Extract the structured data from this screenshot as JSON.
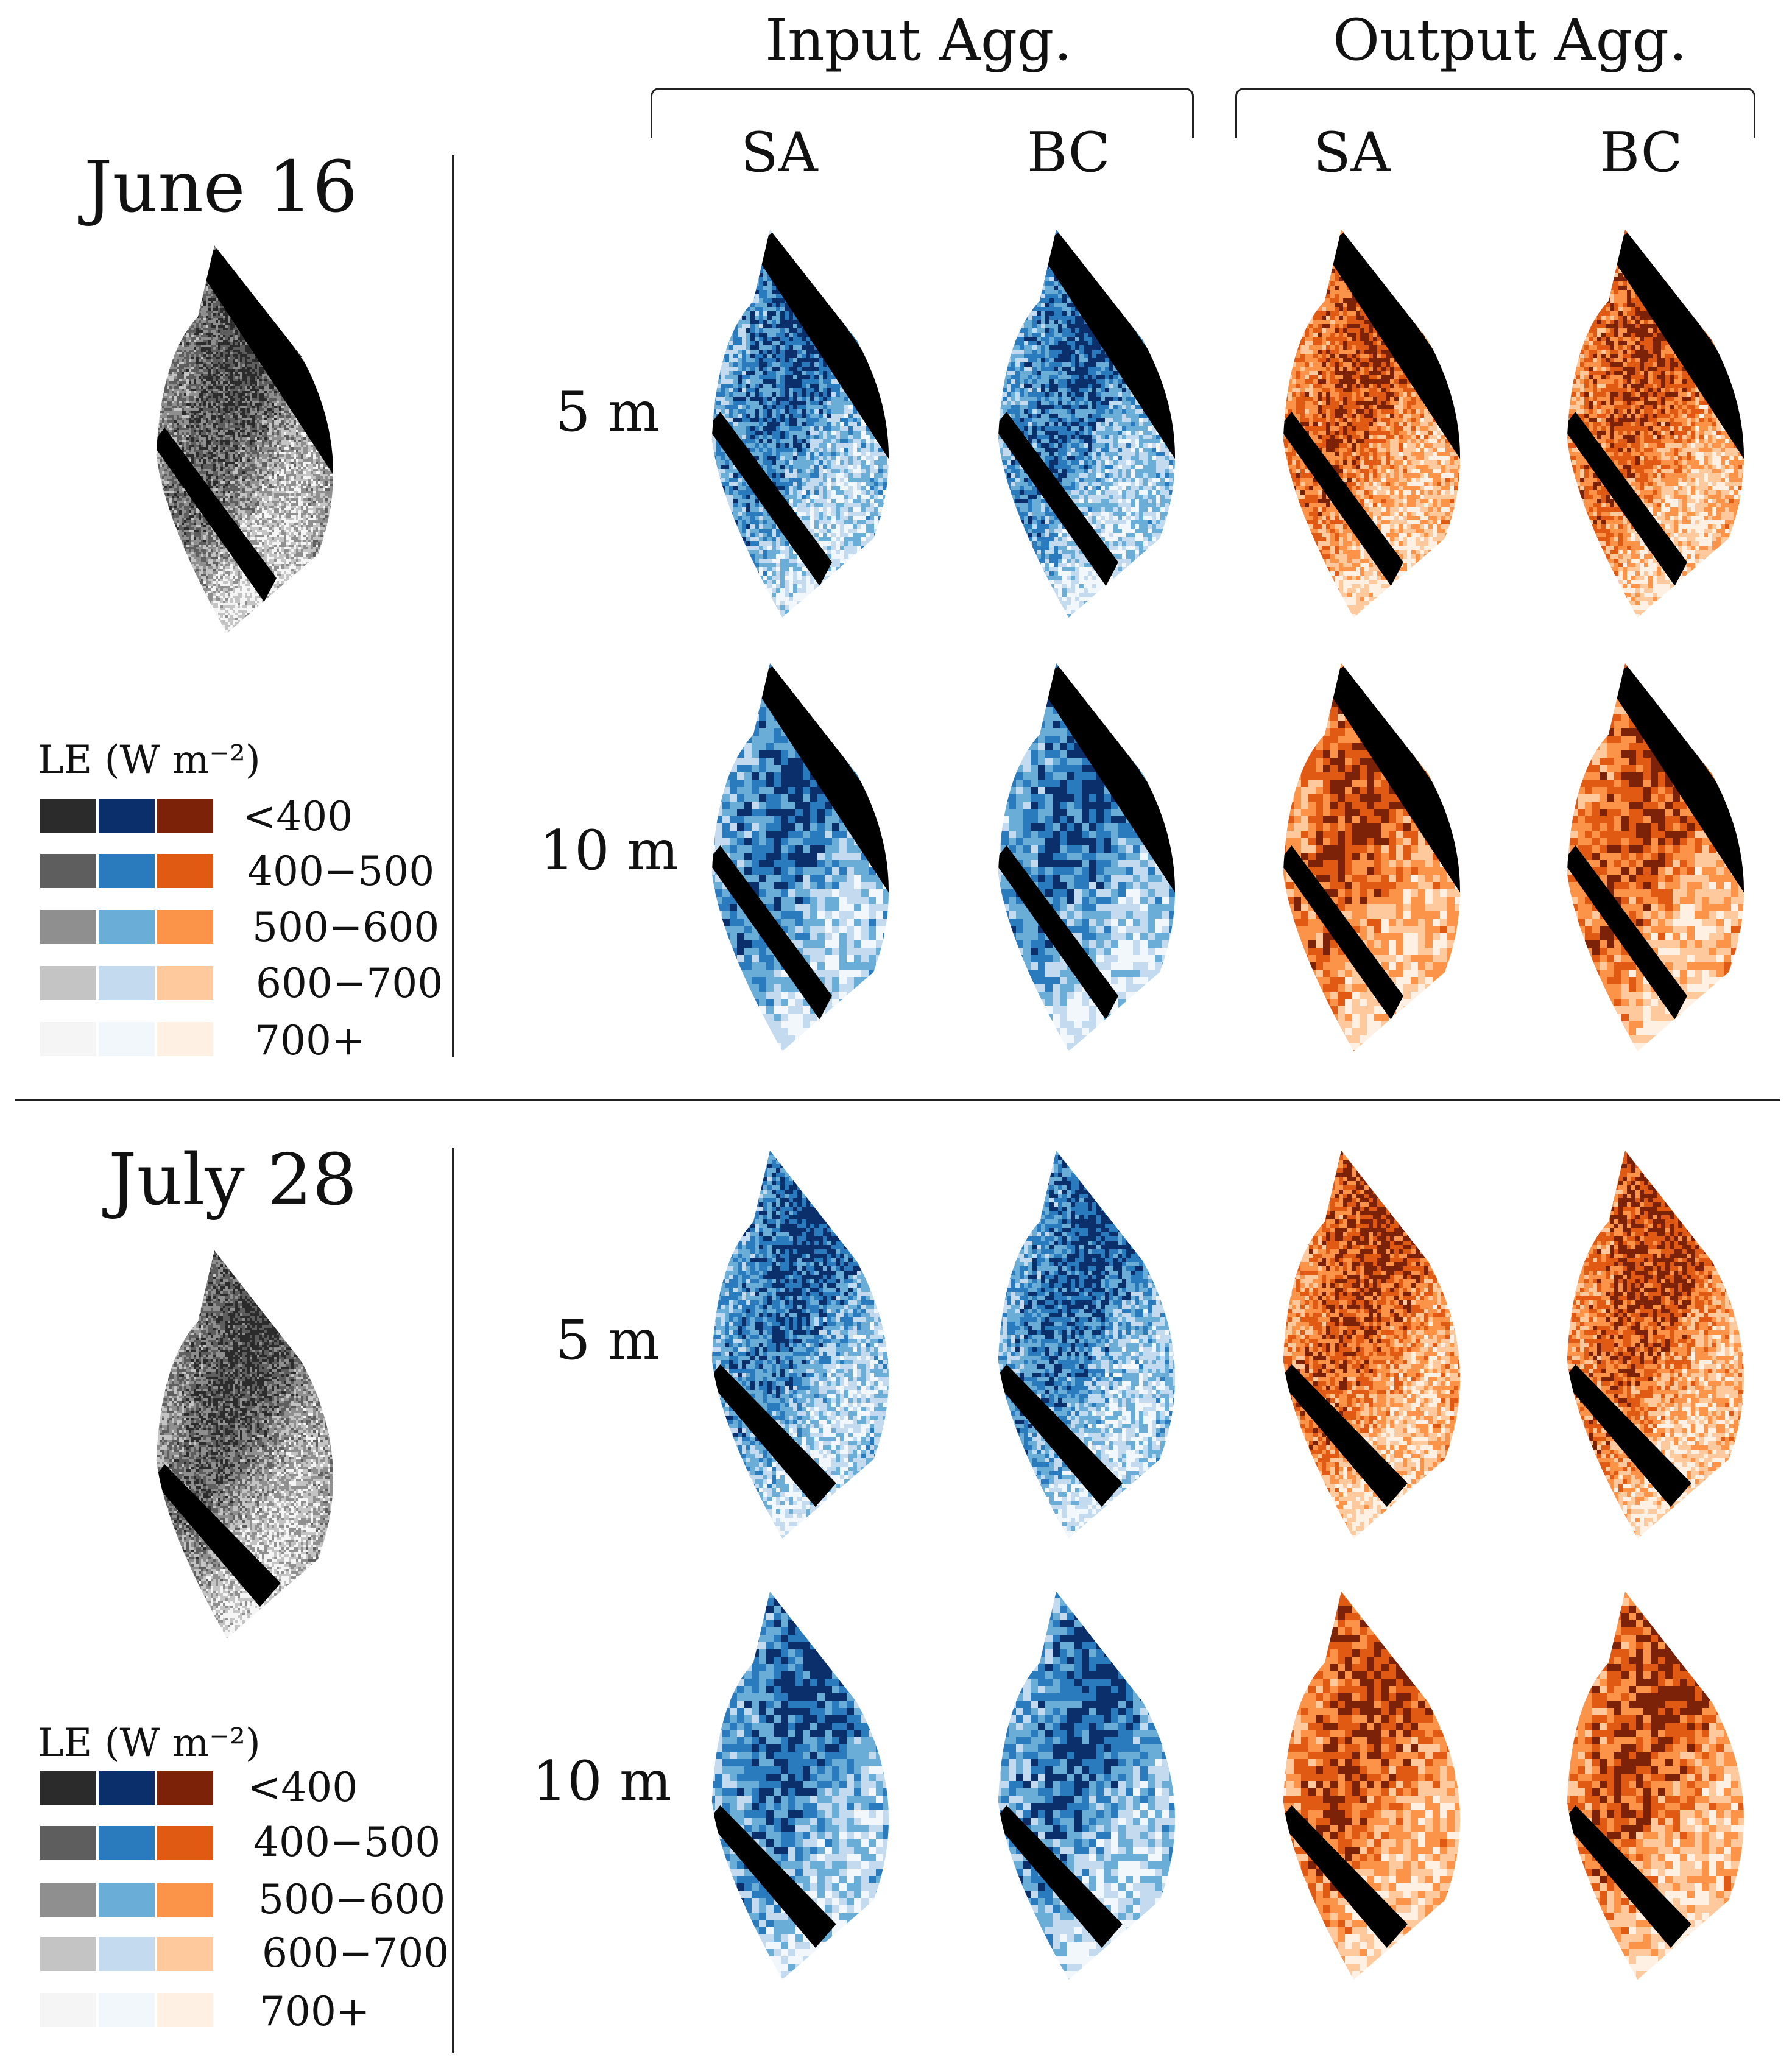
{
  "figure": {
    "column_groups": [
      {
        "label": "Input Agg.",
        "sub": [
          "SA",
          "BC"
        ]
      },
      {
        "label": "Output Agg.",
        "sub": [
          "SA",
          "BC"
        ]
      }
    ],
    "panels": [
      {
        "date": "June 16",
        "resolutions": [
          "5 m",
          "10 m"
        ],
        "legend": {
          "title": "LE (W m⁻²)",
          "bins": [
            {
              "label": "<400",
              "gray": "#2b2b2b",
              "blue": "#0b2f6b",
              "orange": "#7b2208"
            },
            {
              "label": "400−500",
              "gray": "#5e5e5e",
              "blue": "#2a7bbd",
              "orange": "#e05a14"
            },
            {
              "label": "500−600",
              "gray": "#8f8f8f",
              "blue": "#6aaed8",
              "orange": "#fb9448"
            },
            {
              "label": "600−700",
              "gray": "#c4c4c4",
              "blue": "#c4dbef",
              "orange": "#fdc99d"
            },
            {
              "label": "700+",
              "gray": "#f5f5f5",
              "blue": "#f2f7fc",
              "orange": "#fff0e4"
            }
          ]
        }
      },
      {
        "date": "July 28",
        "resolutions": [
          "5 m",
          "10 m"
        ],
        "legend": {
          "title": "LE (W m⁻²)",
          "bins": [
            {
              "label": "<400",
              "gray": "#2b2b2b",
              "blue": "#0b2f6b",
              "orange": "#7b2208"
            },
            {
              "label": "400−500",
              "gray": "#5e5e5e",
              "blue": "#2a7bbd",
              "orange": "#e05a14"
            },
            {
              "label": "500−600",
              "gray": "#8f8f8f",
              "blue": "#6aaed8",
              "orange": "#fb9448"
            },
            {
              "label": "600−700",
              "gray": "#c4c4c4",
              "blue": "#c4dbef",
              "orange": "#fdc99d"
            },
            {
              "label": "700+",
              "gray": "#f5f5f5",
              "blue": "#f2f7fc",
              "orange": "#fff0e4"
            }
          ]
        }
      }
    ],
    "colors": {
      "mask": "#000000",
      "rule": "#222222"
    }
  }
}
